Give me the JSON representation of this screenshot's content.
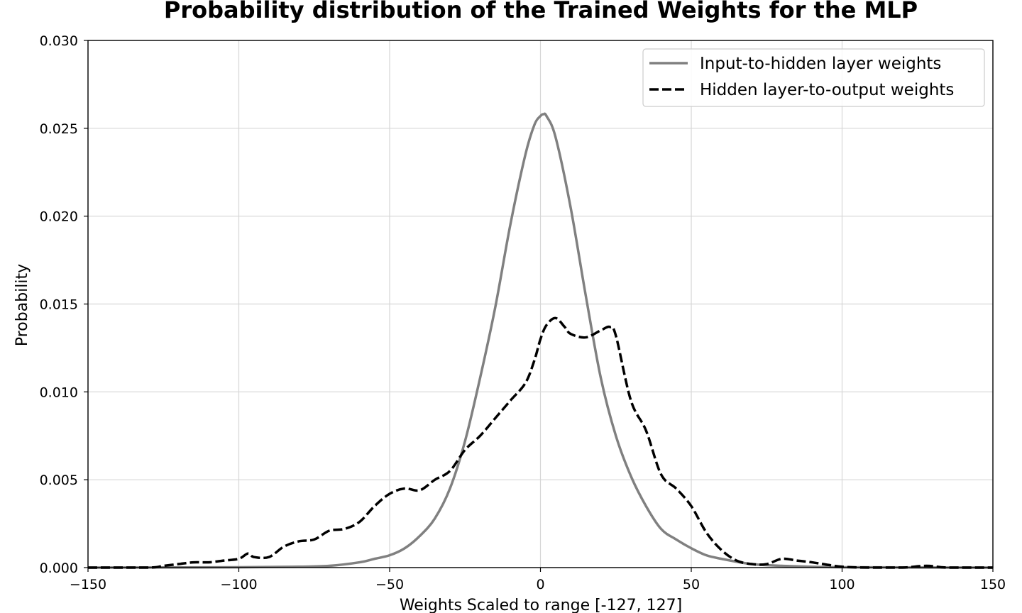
{
  "chart_data": {
    "type": "line",
    "title": "Probability distribution of the Trained Weights for the MLP",
    "xlabel": "Weights Scaled to range [-127, 127]",
    "ylabel": "Probability",
    "xlim": [
      -150,
      150
    ],
    "ylim": [
      0,
      0.03
    ],
    "xticks": [
      -150,
      -100,
      -50,
      0,
      50,
      100,
      150
    ],
    "xtick_labels": [
      "−150",
      "−100",
      "−50",
      "0",
      "50",
      "100",
      "150"
    ],
    "yticks": [
      0,
      0.005,
      0.01,
      0.015,
      0.02,
      0.025,
      0.03
    ],
    "ytick_labels": [
      "0.000",
      "0.005",
      "0.010",
      "0.015",
      "0.020",
      "0.025",
      "0.030"
    ],
    "grid": true,
    "legend_position": "top-right",
    "series": [
      {
        "name": "Input-to-hidden layer weights",
        "color": "#808080",
        "style": "solid",
        "x": [
          -150,
          -100,
          -80,
          -70,
          -60,
          -55,
          -50,
          -45,
          -40,
          -35,
          -30,
          -25,
          -20,
          -15,
          -10,
          -5,
          -2,
          0,
          1,
          2,
          5,
          10,
          15,
          20,
          25,
          30,
          35,
          40,
          45,
          50,
          55,
          60,
          70,
          80,
          100,
          150
        ],
        "y": [
          0,
          2e-05,
          5e-05,
          0.0001,
          0.0003,
          0.0005,
          0.0007,
          0.0011,
          0.0018,
          0.0028,
          0.0045,
          0.0072,
          0.0108,
          0.0148,
          0.0195,
          0.0235,
          0.0252,
          0.0257,
          0.0258,
          0.0257,
          0.0245,
          0.0205,
          0.0155,
          0.0108,
          0.0075,
          0.0052,
          0.0035,
          0.0022,
          0.0016,
          0.0011,
          0.0007,
          0.0005,
          0.0002,
          0.0001,
          2e-05,
          0
        ]
      },
      {
        "name": "Hidden layer-to-output weights",
        "color": "#000000",
        "style": "dashed",
        "x": [
          -150,
          -130,
          -125,
          -120,
          -115,
          -110,
          -105,
          -100,
          -97,
          -95,
          -90,
          -85,
          -80,
          -75,
          -70,
          -65,
          -60,
          -55,
          -50,
          -45,
          -40,
          -35,
          -30,
          -25,
          -20,
          -15,
          -10,
          -5,
          -2,
          0,
          2,
          5,
          8,
          10,
          15,
          20,
          23,
          25,
          30,
          35,
          40,
          45,
          50,
          55,
          60,
          65,
          70,
          75,
          80,
          85,
          90,
          100,
          110,
          120,
          128,
          135,
          150
        ],
        "y": [
          0,
          0,
          0.0001,
          0.0002,
          0.0003,
          0.0003,
          0.0004,
          0.0005,
          0.0008,
          0.0006,
          0.0006,
          0.0012,
          0.0015,
          0.0016,
          0.0021,
          0.0022,
          0.0026,
          0.0035,
          0.0042,
          0.0045,
          0.0044,
          0.005,
          0.0055,
          0.0067,
          0.0075,
          0.0085,
          0.0095,
          0.0105,
          0.0118,
          0.013,
          0.0138,
          0.0142,
          0.0137,
          0.0133,
          0.0131,
          0.0135,
          0.0137,
          0.0132,
          0.0095,
          0.0078,
          0.0053,
          0.0045,
          0.0035,
          0.002,
          0.001,
          0.0004,
          0.0002,
          0.0002,
          0.0005,
          0.0004,
          0.0003,
          5e-05,
          0,
          0,
          0.0001,
          0,
          0
        ]
      }
    ]
  }
}
